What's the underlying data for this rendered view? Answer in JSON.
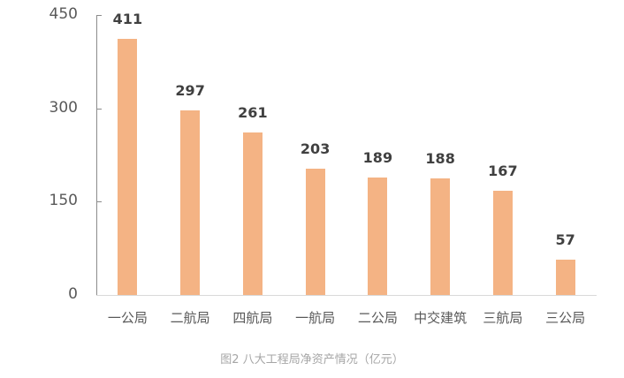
{
  "chart_data": {
    "type": "bar",
    "title": "图2 八大工程局净资产情况（亿元）",
    "xlabel": "",
    "ylabel": "",
    "categories": [
      "一公局",
      "二航局",
      "四航局",
      "一航局",
      "二公局",
      "中交建筑",
      "三航局",
      "三公局"
    ],
    "values": [
      411,
      297,
      261,
      203,
      189,
      188,
      167,
      57
    ],
    "ylim": [
      0,
      450
    ],
    "yticks": [
      0,
      150,
      300,
      450
    ],
    "grid": false,
    "legend": null,
    "data_labels": true,
    "bar_color": "#F4B384"
  },
  "caption": "图2 八大工程局净资产情况（亿元）",
  "colors": {
    "bar": "#F4B384",
    "axis": "#8C8C8C",
    "baseline": "#D9D9D9",
    "tick_text": "#595959",
    "data_label": "#404040",
    "caption": "#A6A6A6"
  }
}
